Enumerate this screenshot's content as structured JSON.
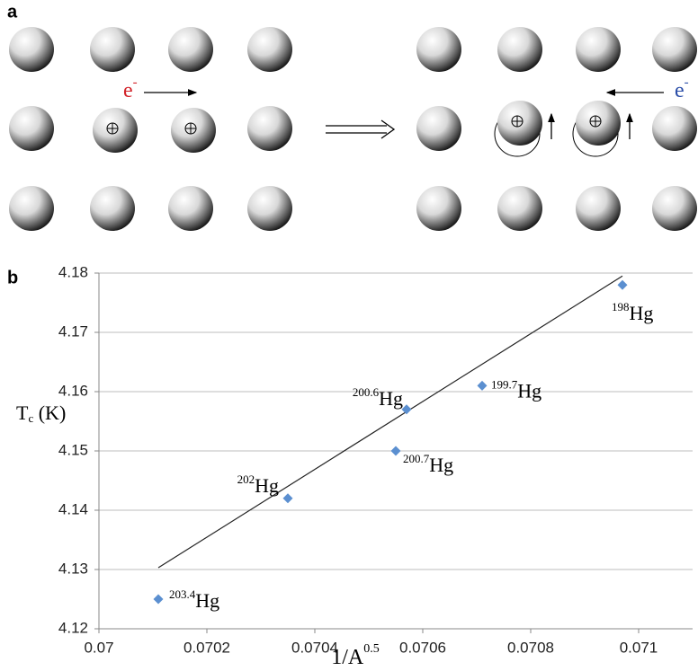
{
  "panel_a": {
    "label": "a",
    "electron_left": {
      "symbol": "e",
      "charge": "-"
    },
    "electron_right": {
      "symbol": "e",
      "charge": "-"
    }
  },
  "chart_data": {
    "type": "scatter",
    "label": "b",
    "xlabel": {
      "main": "1/A",
      "sup": "0.5"
    },
    "ylabel": {
      "main": "T",
      "sub": "c",
      "unit": " (K)"
    },
    "x": [
      0.07011,
      0.07035,
      0.07055,
      0.07057,
      0.07071,
      0.07097
    ],
    "y": [
      4.125,
      4.142,
      4.15,
      4.157,
      4.161,
      4.178
    ],
    "point_labels": [
      {
        "mass": "203.4",
        "element": "Hg"
      },
      {
        "mass": "202",
        "element": "Hg"
      },
      {
        "mass": "200.7",
        "element": "Hg"
      },
      {
        "mass": "200.6",
        "element": "Hg"
      },
      {
        "mass": "199.7",
        "element": "Hg"
      },
      {
        "mass": "198",
        "element": "Hg"
      }
    ],
    "color": "#5b8fd0",
    "trendline": {
      "x": [
        0.07011,
        0.07097
      ],
      "y": [
        4.1303,
        4.1795
      ],
      "color": "#222"
    },
    "xlim": [
      0.07,
      0.0711
    ],
    "xticks": [
      0.07,
      0.0702,
      0.0704,
      0.0706,
      0.0708,
      0.071
    ],
    "ylim": [
      4.12,
      4.18
    ],
    "yticks": [
      4.12,
      4.13,
      4.14,
      4.15,
      4.16,
      4.17,
      4.18
    ],
    "grid": true
  }
}
